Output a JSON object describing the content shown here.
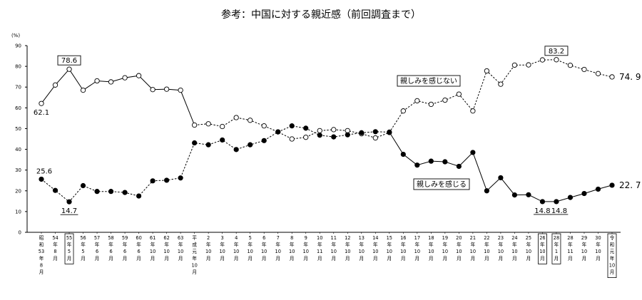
{
  "chart_data": {
    "type": "line",
    "title": "参考：中国に対する親近感（前回調査まで）",
    "ylabel": "(%)",
    "ylim": [
      0,
      90
    ],
    "yticks": [
      0,
      10,
      20,
      30,
      40,
      50,
      60,
      70,
      80,
      90
    ],
    "grid": false,
    "categories": [
      [
        "昭",
        "和",
        "53",
        "年",
        "8",
        "月"
      ],
      [
        "54",
        "年",
        "8",
        "月"
      ],
      [
        "55",
        "年",
        "5",
        "月"
      ],
      [
        "56",
        "年",
        "5",
        "月"
      ],
      [
        "57",
        "年",
        "6",
        "月"
      ],
      [
        "58",
        "年",
        "6",
        "月"
      ],
      [
        "59",
        "年",
        "6",
        "月"
      ],
      [
        "60",
        "年",
        "6",
        "月"
      ],
      [
        "61",
        "年",
        "10",
        "月"
      ],
      [
        "62",
        "年",
        "10",
        "月"
      ],
      [
        "63",
        "年",
        "10",
        "月"
      ],
      [
        "平",
        "成",
        "元",
        "年",
        "10",
        "月"
      ],
      [
        "2",
        "年",
        "10",
        "月"
      ],
      [
        "3",
        "年",
        "10",
        "月"
      ],
      [
        "4",
        "年",
        "10",
        "月"
      ],
      [
        "5",
        "年",
        "10",
        "月"
      ],
      [
        "6",
        "年",
        "10",
        "月"
      ],
      [
        "7",
        "年",
        "10",
        "月"
      ],
      [
        "8",
        "年",
        "10",
        "月"
      ],
      [
        "9",
        "年",
        "10",
        "月"
      ],
      [
        "10",
        "年",
        "11",
        "月"
      ],
      [
        "11",
        "年",
        "10",
        "月"
      ],
      [
        "12",
        "年",
        "10",
        "月"
      ],
      [
        "13",
        "年",
        "10",
        "月"
      ],
      [
        "14",
        "年",
        "10",
        "月"
      ],
      [
        "15",
        "年",
        "10",
        "月"
      ],
      [
        "16",
        "年",
        "10",
        "月"
      ],
      [
        "17",
        "年",
        "10",
        "月"
      ],
      [
        "18",
        "年",
        "10",
        "月"
      ],
      [
        "19",
        "年",
        "10",
        "月"
      ],
      [
        "20",
        "年",
        "10",
        "月"
      ],
      [
        "21",
        "年",
        "10",
        "月"
      ],
      [
        "22",
        "年",
        "10",
        "月"
      ],
      [
        "23",
        "年",
        "10",
        "月"
      ],
      [
        "24",
        "年",
        "10",
        "月"
      ],
      [
        "25",
        "年",
        "10",
        "月"
      ],
      [
        "26",
        "年",
        "10",
        "月"
      ],
      [
        "28",
        "年",
        "1",
        "月"
      ],
      [
        "28",
        "年",
        "11",
        "月"
      ],
      [
        "29",
        "年",
        "10",
        "月"
      ],
      [
        "30",
        "年",
        "10",
        "月"
      ],
      [
        "令",
        "和",
        "元",
        "年",
        "10",
        "月"
      ]
    ],
    "boxed_categories": [
      2,
      36,
      37,
      41
    ],
    "series": [
      {
        "name": "親しみを感じない",
        "marker": "open-circle",
        "values": [
          62.1,
          71.0,
          78.6,
          68.5,
          73.0,
          72.5,
          74.5,
          75.5,
          68.8,
          69.0,
          68.5,
          51.7,
          52.3,
          51.0,
          55.3,
          54.0,
          51.3,
          48.4,
          45.0,
          45.8,
          49.0,
          49.5,
          49.0,
          47.5,
          45.5,
          48.1,
          58.5,
          63.4,
          61.7,
          63.7,
          66.6,
          58.5,
          77.8,
          71.4,
          80.6,
          80.7,
          83.1,
          83.2,
          80.5,
          78.5,
          76.5,
          74.9
        ],
        "segments": [
          [
            0,
            10,
            "solid"
          ],
          [
            10,
            11,
            "solid"
          ],
          [
            11,
            25,
            "dashed"
          ],
          [
            25,
            31,
            "dashed"
          ],
          [
            31,
            37,
            "dashed"
          ],
          [
            37,
            41,
            "dashed"
          ]
        ],
        "dashed_ranges": [
          [
            10,
            11
          ],
          [
            11,
            25
          ],
          [
            25,
            26
          ],
          [
            26,
            37
          ],
          [
            37,
            41
          ]
        ],
        "solid_ranges": [
          [
            0,
            10
          ]
        ],
        "label": "親しみを感じない"
      },
      {
        "name": "親しみを感じる",
        "marker": "filled-circle",
        "values": [
          25.6,
          20.2,
          14.7,
          22.5,
          19.7,
          19.7,
          19.2,
          17.5,
          24.8,
          25.1,
          26.2,
          43.1,
          42.2,
          44.5,
          39.9,
          42.2,
          44.2,
          48.4,
          51.3,
          50.2,
          46.8,
          46.0,
          47.0,
          48.0,
          48.5,
          48.3,
          37.6,
          32.4,
          34.3,
          34.0,
          31.8,
          38.5,
          20.0,
          26.3,
          18.0,
          18.1,
          14.8,
          14.8,
          16.8,
          18.7,
          20.8,
          22.7
        ],
        "label": "親しみを感じる"
      }
    ],
    "annotations": {
      "not_start": "62.1",
      "not_peak_55": "78.6",
      "not_peak_28jan": "83.2",
      "not_end": "74. 9",
      "feel_start": "25.6",
      "feel_low_55": "14.7",
      "feel_low_26": "14.8",
      "feel_low_28jan": "14.8",
      "feel_end": "22. 7"
    }
  },
  "colors": {
    "line": "#000000",
    "marker_fill_open": "#ffffff",
    "marker_fill_solid": "#000000"
  }
}
